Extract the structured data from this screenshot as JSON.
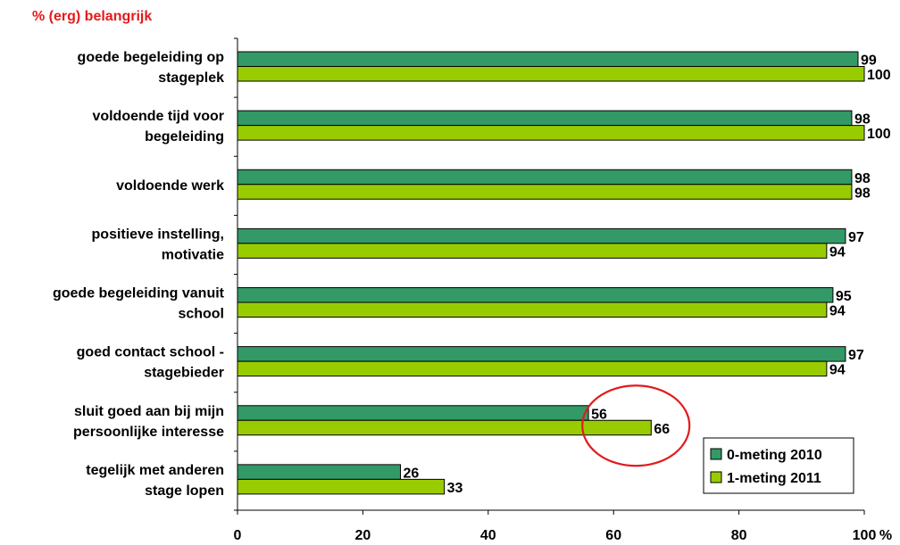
{
  "chart_data": {
    "type": "bar",
    "orientation": "horizontal",
    "title": "% (erg) belangrijk",
    "categories": [
      [
        "goede begeleiding op",
        "stageplek"
      ],
      [
        "voldoende tijd voor",
        "begeleiding"
      ],
      [
        "voldoende werk"
      ],
      [
        "positieve instelling,",
        "motivatie"
      ],
      [
        "goede begeleiding vanuit",
        "school"
      ],
      [
        "goed contact school -",
        "stagebieder"
      ],
      [
        "sluit goed aan bij mijn",
        "persoonlijke interesse"
      ],
      [
        "tegelijk met anderen",
        "stage lopen"
      ]
    ],
    "series": [
      {
        "name": "0-meting 2010",
        "color": "#339966",
        "values": [
          99,
          98,
          98,
          97,
          95,
          97,
          56,
          26
        ]
      },
      {
        "name": "1-meting 2011",
        "color": "#99cc00",
        "values": [
          100,
          100,
          98,
          94,
          94,
          94,
          66,
          33
        ]
      }
    ],
    "xlim": [
      0,
      100
    ],
    "x_ticks": [
      "0",
      "20",
      "40",
      "60",
      "80",
      "100"
    ],
    "x_unit": "%",
    "legend_position": "bottom-right",
    "grid": false,
    "annotation": {
      "shape": "ellipse",
      "color": "#e31a1c",
      "highlights": "sluit goed aan bij mijn persoonlijke interesse"
    },
    "title_color": "#e31a1c"
  }
}
